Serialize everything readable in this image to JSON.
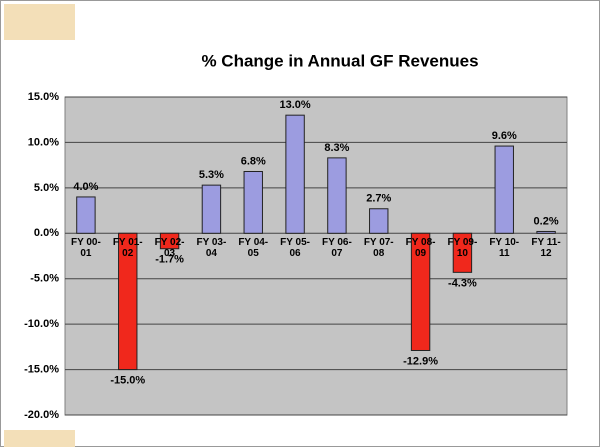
{
  "chart_data": {
    "type": "bar",
    "title": "% Change in Annual GF Revenues",
    "categories": [
      "FY 00-01",
      "FY 01-02",
      "FY 02-03",
      "FY 03-04",
      "FY 04-05",
      "FY 05-06",
      "FY 06-07",
      "FY 07-08",
      "FY 08-09",
      "FY 09-10",
      "FY 10-11",
      "FY 11-12"
    ],
    "values": [
      4.0,
      -15.0,
      -1.7,
      5.3,
      6.8,
      13.0,
      8.3,
      2.7,
      -12.9,
      -4.3,
      9.6,
      0.2
    ],
    "value_labels": [
      "4.0%",
      "-15.0%",
      "-1.7%",
      "5.3%",
      "6.8%",
      "13.0%",
      "8.3%",
      "2.7%",
      "-12.9%",
      "-4.3%",
      "9.6%",
      "0.2%"
    ],
    "color": "#9c9ce0",
    "negative_color": "#f0281c",
    "ylim": [
      -20,
      15
    ],
    "yticks": [
      {
        "value": -20,
        "label": "-20.0%"
      },
      {
        "value": -15,
        "label": "-15.0%"
      },
      {
        "value": -10,
        "label": "-10.0%"
      },
      {
        "value": -5,
        "label": "-5.0%"
      },
      {
        "value": 0,
        "label": "0.0%"
      },
      {
        "value": 5,
        "label": "5.0%"
      },
      {
        "value": 10,
        "label": "10.0%"
      },
      {
        "value": 15,
        "label": "15.0%"
      }
    ],
    "grid": true
  }
}
